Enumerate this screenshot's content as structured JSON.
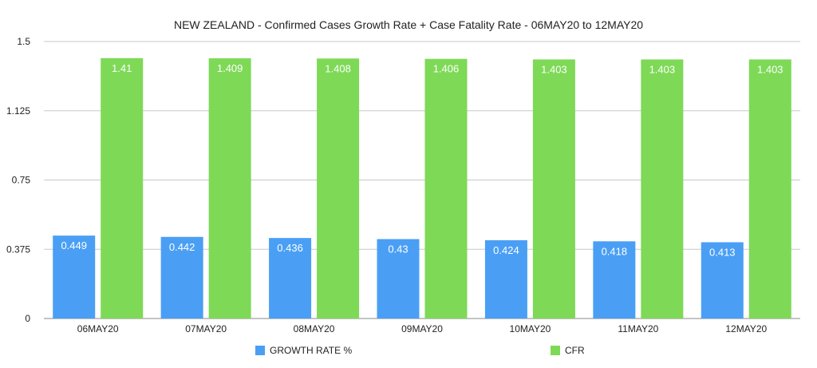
{
  "chart_data": {
    "type": "bar",
    "title": "NEW ZEALAND - Confirmed Cases Growth Rate + Case Fatality Rate - 06MAY20 to 12MAY20",
    "xlabel": "",
    "ylabel": "",
    "ylim": [
      0,
      1.5
    ],
    "yticks": [
      "0",
      "0.375",
      "0.75",
      "1.125",
      "1.5"
    ],
    "categories": [
      "06MAY20",
      "07MAY20",
      "08MAY20",
      "09MAY20",
      "10MAY20",
      "11MAY20",
      "12MAY20"
    ],
    "series": [
      {
        "name": "GROWTH RATE %",
        "color": "#4a9ff5",
        "values": [
          0.449,
          0.442,
          0.436,
          0.43,
          0.424,
          0.418,
          0.413
        ],
        "labels": [
          "0.449",
          "0.442",
          "0.436",
          "0.43",
          "0.424",
          "0.418",
          "0.413"
        ]
      },
      {
        "name": "CFR",
        "color": "#7ed957",
        "values": [
          1.41,
          1.409,
          1.408,
          1.406,
          1.403,
          1.403,
          1.403
        ],
        "labels": [
          "1.41",
          "1.409",
          "1.408",
          "1.406",
          "1.403",
          "1.403",
          "1.403"
        ]
      }
    ],
    "grid": true,
    "legend_position": "bottom"
  }
}
